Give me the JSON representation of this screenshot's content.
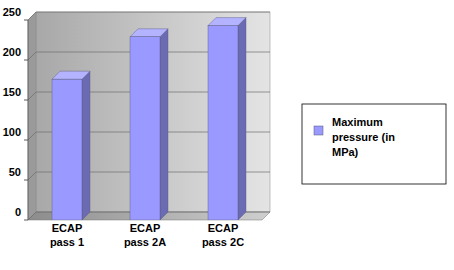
{
  "chart_data": {
    "type": "bar",
    "categories": [
      "ECAP pass 1",
      "ECAP pass 2A",
      "ECAP pass 2C"
    ],
    "series": [
      {
        "name": "Maximum pressure (in MPa)",
        "color": "#9999ff",
        "values": [
          176,
          229,
          243
        ]
      }
    ],
    "ylim": [
      0,
      250
    ],
    "yticks": [
      0,
      50,
      100,
      150,
      200,
      250
    ],
    "grid": true,
    "legend": "right"
  }
}
